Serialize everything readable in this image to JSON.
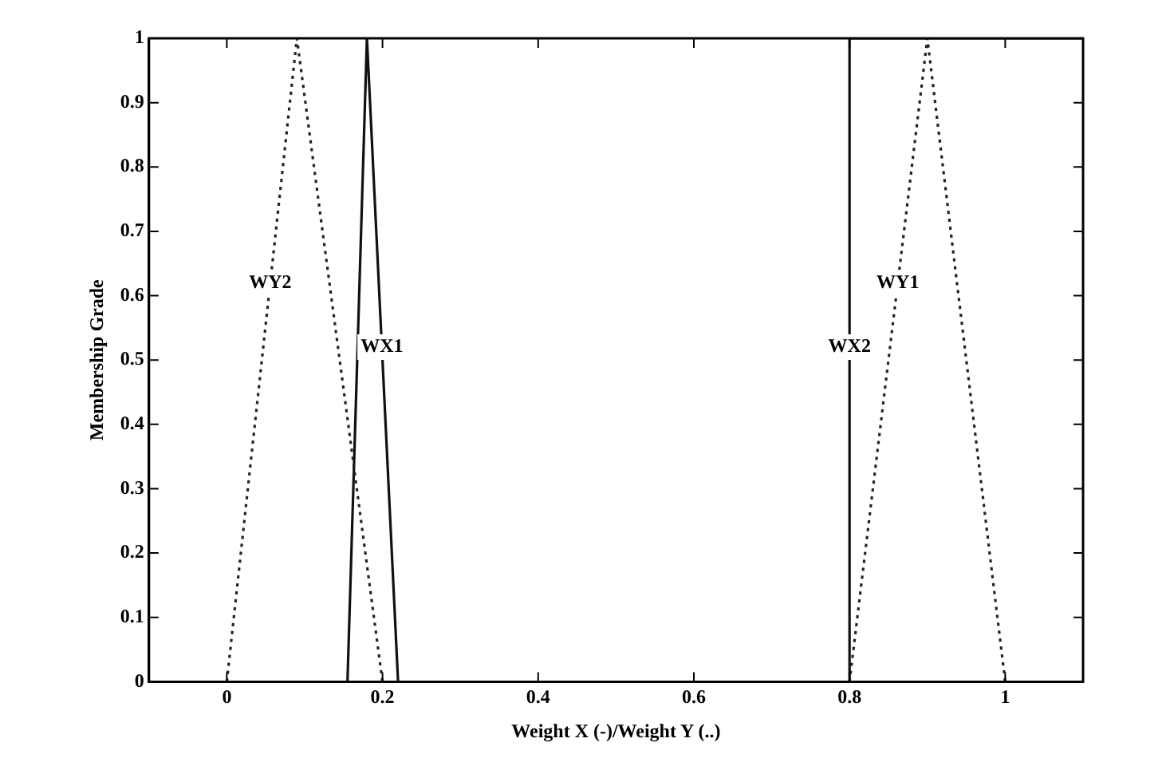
{
  "chart_data": {
    "type": "line",
    "xlabel": "Weight X (-)/Weight Y (..)",
    "ylabel": "Membership Grade",
    "xlim": [
      -0.1,
      1.1
    ],
    "xticks": [
      0,
      0.2,
      0.4,
      0.6,
      0.8,
      1
    ],
    "ylim": [
      0,
      1
    ],
    "yticks": [
      0,
      0.1,
      0.2,
      0.3,
      0.4,
      0.5,
      0.6,
      0.7,
      0.8,
      0.9,
      1
    ],
    "grid": false,
    "legend": false,
    "marker": "none",
    "series": [
      {
        "color": "#222222",
        "line_style": "dotted",
        "x": [
          0,
          0.09,
          0.2
        ],
        "values": [
          0,
          1,
          0
        ]
      },
      {
        "color": "#111111",
        "line_style": "solid",
        "x": [
          0.155,
          0.18,
          0.22
        ],
        "values": [
          0,
          1,
          0
        ]
      },
      {
        "color": "#111111",
        "line_style": "solid",
        "x": [
          0.8,
          0.8,
          1.1
        ],
        "values": [
          0,
          1,
          1
        ]
      },
      {
        "color": "#222222",
        "line_style": "dotted",
        "x": [
          0.8,
          0.9,
          1
        ],
        "values": [
          0,
          1,
          0
        ]
      }
    ],
    "annotations": [
      {
        "text": "WY2",
        "x": 0.0558,
        "y": 0.62
      },
      {
        "text": "WX1",
        "x": 0.1992,
        "y": 0.52
      },
      {
        "text": "WX2",
        "x": 0.8,
        "y": 0.52
      },
      {
        "text": "WY1",
        "x": 0.862,
        "y": 0.62
      }
    ]
  }
}
